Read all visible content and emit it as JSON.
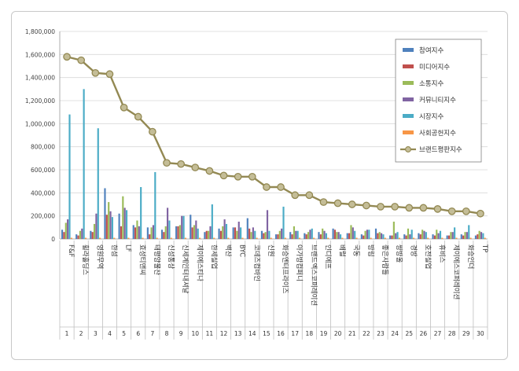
{
  "chart_data": {
    "type": "bar",
    "ylim": [
      0,
      1800000
    ],
    "yticks": [
      "0",
      "200,000",
      "400,000",
      "600,000",
      "800,000",
      "1,000,000",
      "1,200,000",
      "1,400,000",
      "1,600,000",
      "1,800,000"
    ],
    "ytick_values": [
      0,
      200000,
      400000,
      600000,
      800000,
      1000000,
      1200000,
      1400000,
      1600000,
      1800000
    ],
    "grid": true,
    "legend_position": "top-right",
    "categories": [
      "F&F",
      "휠라홀딩스",
      "영원무역",
      "한섬",
      "LF",
      "효성티앤씨",
      "태평양물산",
      "신성통상",
      "신세계인터내셔날",
      "제이에스티나",
      "한세실업",
      "백산",
      "BYC",
      "코데즈컴바인",
      "신원",
      "화승엔터프라이즈",
      "아가방컴퍼니",
      "브랜드엑스코퍼레이션",
      "인디에프",
      "배럴",
      "국동",
      "방림",
      "좋은사람들",
      "쌍방울",
      "경방",
      "호전실업",
      "휴비스",
      "제이에스코퍼레이션",
      "화승인더",
      "TP"
    ],
    "indices": [
      "1",
      "2",
      "3",
      "4",
      "5",
      "6",
      "7",
      "8",
      "9",
      "10",
      "11",
      "12",
      "13",
      "14",
      "15",
      "16",
      "17",
      "18",
      "19",
      "20",
      "21",
      "22",
      "23",
      "24",
      "25",
      "26",
      "27",
      "28",
      "29",
      "30"
    ],
    "series": [
      {
        "name": "참여지수",
        "color": "#4f81bd",
        "values": [
          80000,
          40000,
          70000,
          440000,
          220000,
          120000,
          100000,
          80000,
          110000,
          210000,
          60000,
          90000,
          100000,
          180000,
          70000,
          40000,
          60000,
          50000,
          60000,
          90000,
          50000,
          40000,
          90000,
          30000,
          40000,
          50000,
          40000,
          30000,
          40000,
          30000
        ]
      },
      {
        "name": "미디어지수",
        "color": "#c0504d",
        "values": [
          60000,
          30000,
          60000,
          210000,
          110000,
          100000,
          40000,
          60000,
          110000,
          100000,
          70000,
          70000,
          100000,
          90000,
          50000,
          40000,
          40000,
          40000,
          40000,
          80000,
          50000,
          30000,
          50000,
          30000,
          30000,
          40000,
          30000,
          30000,
          30000,
          40000
        ]
      },
      {
        "name": "소통지수",
        "color": "#9bbb59",
        "values": [
          140000,
          70000,
          130000,
          320000,
          370000,
          160000,
          100000,
          110000,
          120000,
          120000,
          70000,
          110000,
          70000,
          60000,
          60000,
          70000,
          110000,
          60000,
          90000,
          60000,
          120000,
          70000,
          60000,
          150000,
          90000,
          80000,
          80000,
          60000,
          60000,
          70000
        ]
      },
      {
        "name": "커뮤니티지수",
        "color": "#8064a2",
        "values": [
          170000,
          90000,
          220000,
          240000,
          270000,
          110000,
          120000,
          270000,
          200000,
          160000,
          110000,
          170000,
          150000,
          100000,
          250000,
          90000,
          70000,
          80000,
          70000,
          60000,
          100000,
          80000,
          50000,
          50000,
          40000,
          70000,
          50000,
          60000,
          60000,
          60000
        ]
      },
      {
        "name": "시장지수",
        "color": "#4bacc6",
        "values": [
          1080000,
          1300000,
          960000,
          190000,
          250000,
          450000,
          580000,
          160000,
          200000,
          90000,
          300000,
          130000,
          100000,
          70000,
          70000,
          280000,
          70000,
          90000,
          50000,
          40000,
          70000,
          80000,
          40000,
          60000,
          80000,
          60000,
          70000,
          100000,
          120000,
          50000
        ]
      },
      {
        "name": "사회공헌지수",
        "color": "#f79646",
        "values": [
          10000,
          10000,
          10000,
          10000,
          10000,
          10000,
          10000,
          10000,
          10000,
          10000,
          10000,
          10000,
          10000,
          10000,
          10000,
          10000,
          10000,
          10000,
          10000,
          10000,
          10000,
          10000,
          10000,
          10000,
          10000,
          10000,
          10000,
          10000,
          10000,
          10000
        ]
      }
    ],
    "line_series": {
      "name": "브랜드평판지수",
      "color": "#938953",
      "marker_color": "#c4bd97",
      "values": [
        1580000,
        1550000,
        1440000,
        1430000,
        1140000,
        1060000,
        930000,
        660000,
        650000,
        620000,
        590000,
        550000,
        540000,
        540000,
        450000,
        450000,
        380000,
        380000,
        320000,
        310000,
        300000,
        290000,
        280000,
        280000,
        270000,
        270000,
        260000,
        240000,
        240000,
        220000
      ]
    }
  }
}
